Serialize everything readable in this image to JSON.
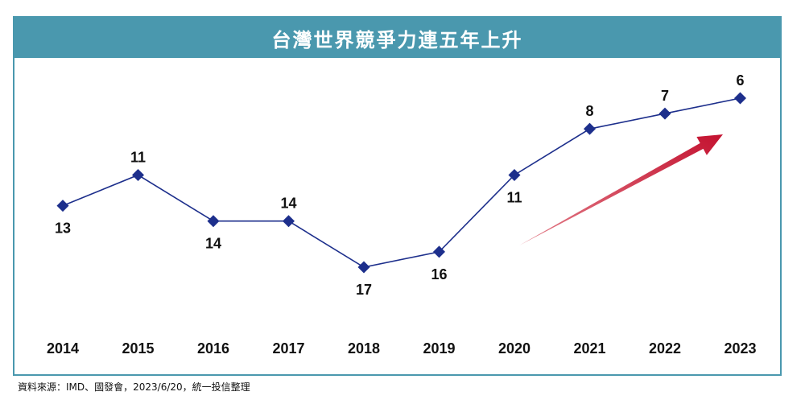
{
  "chart_data": {
    "type": "line",
    "title": "台灣世界競爭力連五年上升",
    "categories": [
      "2014",
      "2015",
      "2016",
      "2017",
      "2018",
      "2019",
      "2020",
      "2021",
      "2022",
      "2023"
    ],
    "values": [
      13,
      11,
      14,
      14,
      17,
      16,
      11,
      8,
      7,
      6
    ],
    "y_inverted": true,
    "grid": false,
    "colors": {
      "line": "#1d2f8c",
      "marker": "#1d2f8c",
      "arrow": "#c41230",
      "border": "#4a98ae"
    }
  },
  "source": "資料來源：IMD、國發會，2023/6/20，統一投信整理"
}
